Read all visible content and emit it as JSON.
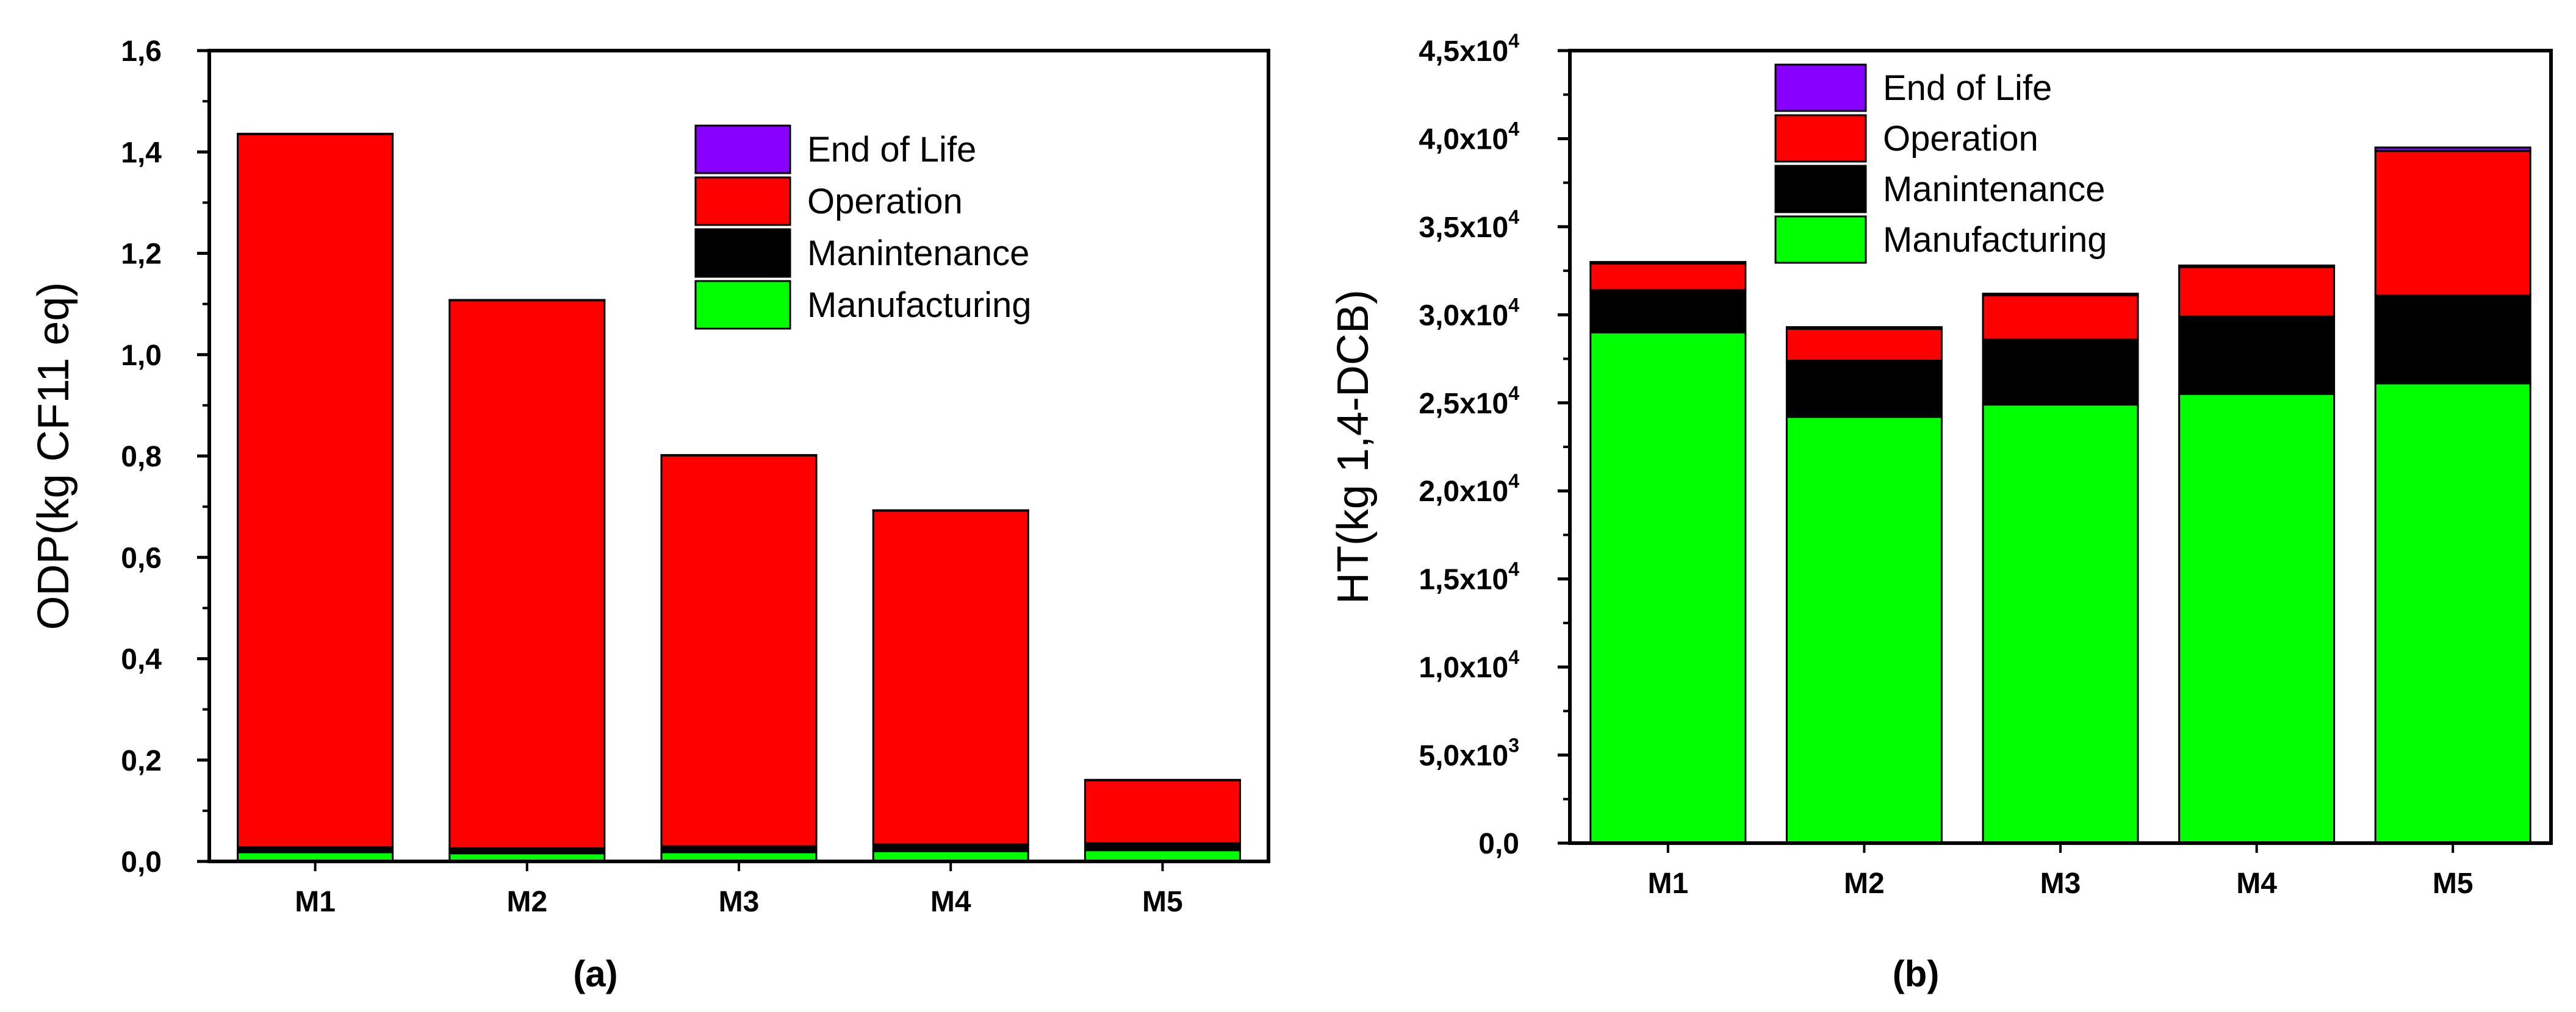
{
  "chart_data": [
    {
      "type": "bar",
      "stacked": true,
      "caption": "(a)",
      "ylabel": "ODP(kg CF11 eq)",
      "xlabel": "",
      "categories": [
        "M1",
        "M2",
        "M3",
        "M4",
        "M5"
      ],
      "ylim": [
        0,
        1.6
      ],
      "yticks": [
        "0,0",
        "0,2",
        "0,4",
        "0,6",
        "0,8",
        "1,0",
        "1,2",
        "1,4",
        "1,6"
      ],
      "legend_position": "top-right",
      "legend": [
        "End of Life",
        "Operation",
        "Manintenance",
        "Manufacturing"
      ],
      "series": [
        {
          "name": "Manufacturing",
          "color": "#00ff00",
          "values": [
            0.018,
            0.016,
            0.018,
            0.02,
            0.022
          ]
        },
        {
          "name": "Manintenance",
          "color": "#000000",
          "values": [
            0.01,
            0.01,
            0.012,
            0.014,
            0.014
          ]
        },
        {
          "name": "Operation",
          "color": "#ff0000",
          "values": [
            1.407,
            1.081,
            0.771,
            0.658,
            0.124
          ]
        },
        {
          "name": "End of Life",
          "color": "#8800ff",
          "values": [
            0.001,
            0.001,
            0.001,
            0.001,
            0.001
          ]
        }
      ]
    },
    {
      "type": "bar",
      "stacked": true,
      "caption": "(b)",
      "ylabel": "HT(kg 1,4-DCB)",
      "xlabel": "",
      "categories": [
        "M1",
        "M2",
        "M3",
        "M4",
        "M5"
      ],
      "ylim": [
        0,
        45000
      ],
      "yticks": [
        {
          "mant": "0,0",
          "exp": ""
        },
        {
          "mant": "5,0x10",
          "exp": "3"
        },
        {
          "mant": "1,0x10",
          "exp": "4"
        },
        {
          "mant": "1,5x10",
          "exp": "4"
        },
        {
          "mant": "2,0x10",
          "exp": "4"
        },
        {
          "mant": "2,5x10",
          "exp": "4"
        },
        {
          "mant": "3,0x10",
          "exp": "4"
        },
        {
          "mant": "3,5x10",
          "exp": "4"
        },
        {
          "mant": "4,0x10",
          "exp": "4"
        },
        {
          "mant": "4,5x10",
          "exp": "4"
        }
      ],
      "legend_position": "top-center",
      "legend": [
        "End of Life",
        "Operation",
        "Manintenance",
        "Manufacturing"
      ],
      "series": [
        {
          "name": "Manufacturing",
          "color": "#00ff00",
          "values": [
            29000,
            24200,
            24900,
            25500,
            26100
          ]
        },
        {
          "name": "Manintenance",
          "color": "#000000",
          "values": [
            2400,
            3200,
            3700,
            4400,
            5000
          ]
        },
        {
          "name": "Operation",
          "color": "#ff0000",
          "values": [
            1500,
            1800,
            2500,
            2800,
            8200
          ]
        },
        {
          "name": "End of Life",
          "color": "#8800ff",
          "values": [
            100,
            100,
            100,
            100,
            200
          ]
        }
      ]
    }
  ]
}
